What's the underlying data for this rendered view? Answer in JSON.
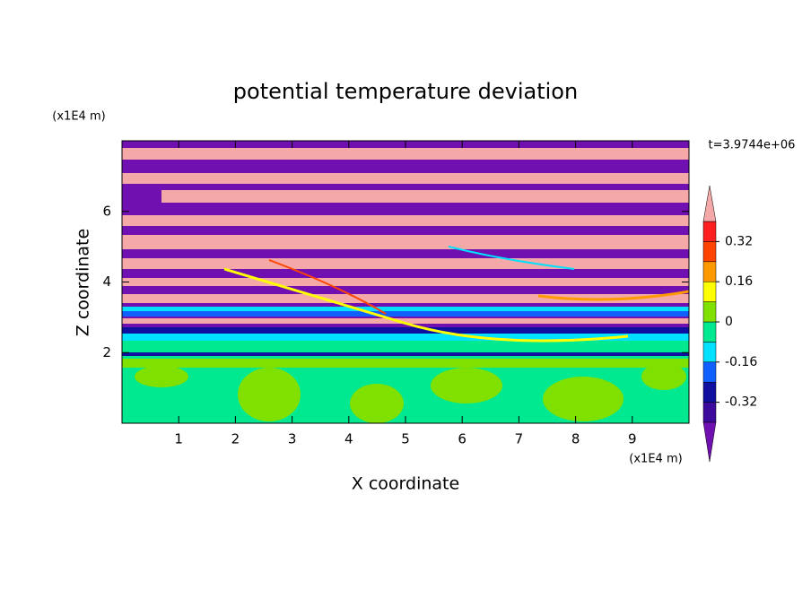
{
  "chart_data": {
    "type": "contour",
    "title": "potential temperature deviation",
    "xlabel": "X coordinate",
    "ylabel": "Z coordinate",
    "xunit": "(x1E4 m)",
    "yunit": "(x1E4 m)",
    "annotation": "t=3.9744e+06",
    "xlim": [
      0,
      10
    ],
    "ylim": [
      0,
      8
    ],
    "xticks": [
      1,
      2,
      3,
      4,
      5,
      6,
      7,
      8,
      9
    ],
    "yticks": [
      2,
      4,
      6
    ],
    "colorbar": {
      "levels": [
        -0.4,
        -0.32,
        -0.24,
        -0.16,
        -0.08,
        0,
        0.08,
        0.16,
        0.24,
        0.32,
        0.4
      ],
      "colors": [
        "#7010b0",
        "#3c0a9c",
        "#1010a0",
        "#1060ff",
        "#00e0ff",
        "#00e890",
        "#80e000",
        "#ffff00",
        "#ff9900",
        "#ff4400",
        "#ff2020",
        "#f5a8a8"
      ],
      "ticks": [
        0.32,
        0.16,
        0,
        -0.16,
        -0.32
      ]
    }
  }
}
